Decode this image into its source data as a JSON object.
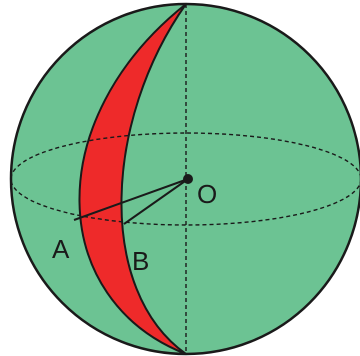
{
  "labels": {
    "center": "O",
    "point_a": "A",
    "point_b": "B"
  },
  "colors": {
    "sphere_fill": "#6cc393",
    "wedge_fill": "#ee2a2a",
    "outline": "#1a1a1a",
    "background": "#ffffff"
  }
}
